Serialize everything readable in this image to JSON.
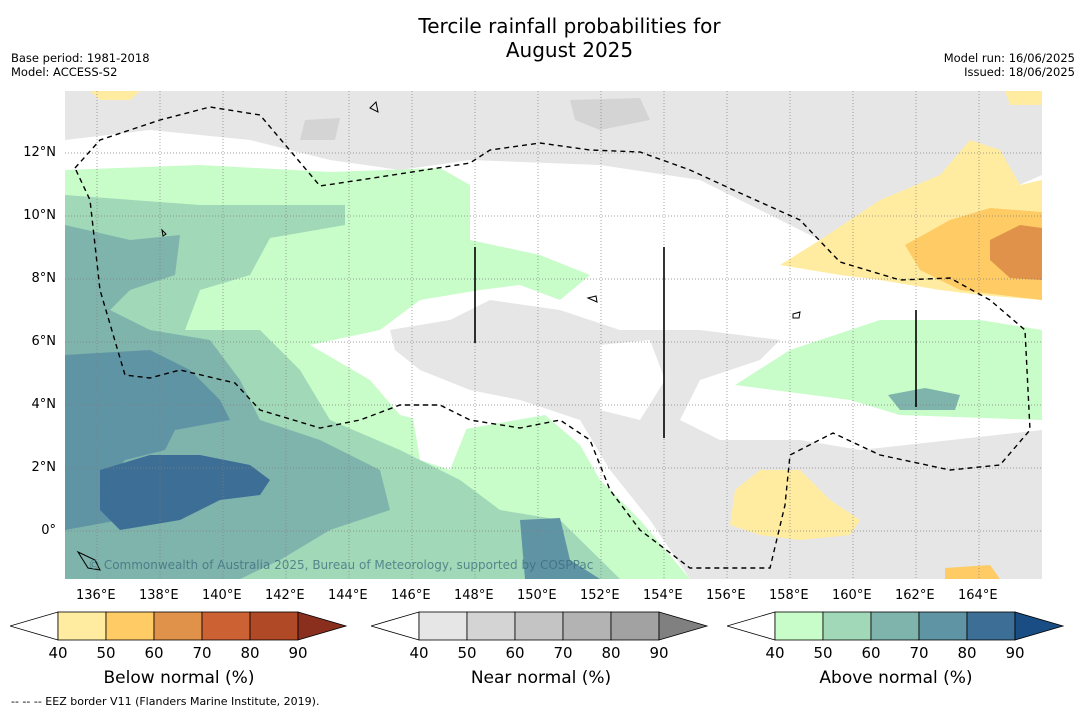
{
  "header": {
    "title_line1": "Tercile rainfall probabilities for",
    "title_line2": "August 2025",
    "base_period": "Base period: 1981-2018",
    "model": "Model: ACCESS-S2",
    "model_run": "Model run: 16/06/2025",
    "issued": "Issued: 18/06/2025"
  },
  "map": {
    "lon_labels": [
      "136°E",
      "138°E",
      "140°E",
      "142°E",
      "144°E",
      "146°E",
      "148°E",
      "150°E",
      "152°E",
      "154°E",
      "156°E",
      "158°E",
      "160°E",
      "162°E",
      "164°E"
    ],
    "lat_labels": [
      "12°N",
      "10°N",
      "8°N",
      "6°N",
      "4°N",
      "2°N",
      "0°"
    ],
    "copyright": "© Commonwealth of Australia 2025, Bureau of Meteorology, supported by COSPPac",
    "eez_note": "-- -- -- EEZ border V11 (Flanders Marine Institute, 2019)."
  },
  "colorbars": {
    "below": {
      "title": "Below normal (%)",
      "ticks": [
        "40",
        "50",
        "60",
        "70",
        "80",
        "90"
      ],
      "colors": [
        "#ffffff",
        "#ffeca0",
        "#fecb64",
        "#e0924a",
        "#cc6234",
        "#b04a26",
        "#8a2f1e"
      ]
    },
    "near": {
      "title": "Near normal (%)",
      "ticks": [
        "40",
        "50",
        "60",
        "70",
        "80",
        "90"
      ],
      "colors": [
        "#ffffff",
        "#e6e6e6",
        "#d4d4d4",
        "#c4c4c4",
        "#b3b3b3",
        "#a2a2a2",
        "#808080"
      ]
    },
    "above": {
      "title": "Above normal (%)",
      "ticks": [
        "40",
        "50",
        "60",
        "70",
        "80",
        "90"
      ],
      "colors": [
        "#ffffff",
        "#c8fcc8",
        "#a0d8b8",
        "#7fb4ac",
        "#5f94a4",
        "#3c6e96",
        "#194d84"
      ]
    }
  }
}
